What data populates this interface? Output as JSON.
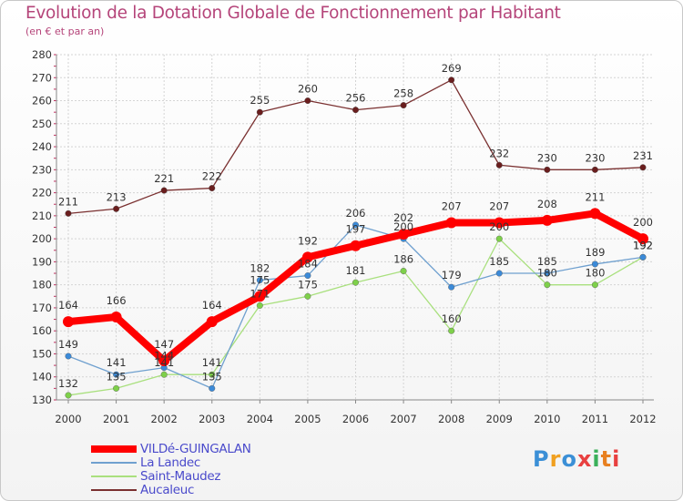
{
  "header": {
    "title": "Evolution de la Dotation Globale de Fonctionnement par Habitant",
    "subtitle": "(en € et par an)"
  },
  "chart_data": {
    "type": "line",
    "title": "Evolution de la Dotation Globale de Fonctionnement par Habitant",
    "subtitle": "(en € et par an)",
    "xlabel": "",
    "ylabel": "",
    "x": [
      "2000",
      "2001",
      "2002",
      "2003",
      "2004",
      "2005",
      "2006",
      "2007",
      "2008",
      "2009",
      "2010",
      "2011",
      "2012"
    ],
    "ylim": [
      130,
      280
    ],
    "yticks": [
      130,
      140,
      150,
      160,
      170,
      180,
      190,
      200,
      210,
      220,
      230,
      240,
      250,
      260,
      270,
      280
    ],
    "grid": true,
    "legend": "bottom-left",
    "series": [
      {
        "name": "VILDé-GUINGALAN",
        "color": "#ff0000",
        "marker_color": "#ff0000",
        "line_width": 8,
        "values": [
          164,
          166,
          147,
          164,
          175,
          192,
          197,
          202,
          207,
          207,
          208,
          211,
          200
        ],
        "labels": [
          "164",
          "166",
          "147",
          "164",
          "175",
          "192",
          "197",
          "202",
          "207",
          "207",
          "208",
          "211",
          "200"
        ]
      },
      {
        "name": "La Landec",
        "color": "#6fa0cf",
        "marker_color": "#3b8ad8",
        "line_width": 1.3,
        "values": [
          149,
          141,
          144,
          135,
          182,
          184,
          206,
          200,
          179,
          185,
          185,
          189,
          192
        ],
        "labels": [
          "149",
          "141",
          "144",
          "135",
          "182",
          "184",
          "206",
          "200",
          "179",
          "185",
          "185",
          "189",
          "192"
        ]
      },
      {
        "name": "Saint-Maudez",
        "color": "#a9e07e",
        "marker_color": "#7ed04a",
        "line_width": 1.3,
        "values": [
          132,
          135,
          141,
          141,
          171,
          175,
          181,
          186,
          160,
          200,
          180,
          180,
          192
        ],
        "labels": [
          "132",
          "135",
          "141",
          "141",
          "171",
          "175",
          "181",
          "186",
          "160",
          "200",
          "180",
          "180",
          "192"
        ]
      },
      {
        "name": "Aucaleuc",
        "color": "#7a3030",
        "marker_color": "#6a1e1e",
        "line_width": 1.3,
        "values": [
          211,
          213,
          221,
          222,
          255,
          260,
          256,
          258,
          269,
          232,
          230,
          230,
          231
        ],
        "labels": [
          "211",
          "213",
          "221",
          "222",
          "255",
          "260",
          "256",
          "258",
          "269",
          "232",
          "230",
          "230",
          "231"
        ]
      }
    ]
  },
  "legend": {
    "items": [
      "VILDé-GUINGALAN",
      "La Landec",
      "Saint-Maudez",
      "Aucaleuc"
    ]
  },
  "logo": {
    "text": "Proxiti",
    "letters": [
      "P",
      "r",
      "o",
      "x",
      "i",
      "t",
      "i"
    ]
  }
}
